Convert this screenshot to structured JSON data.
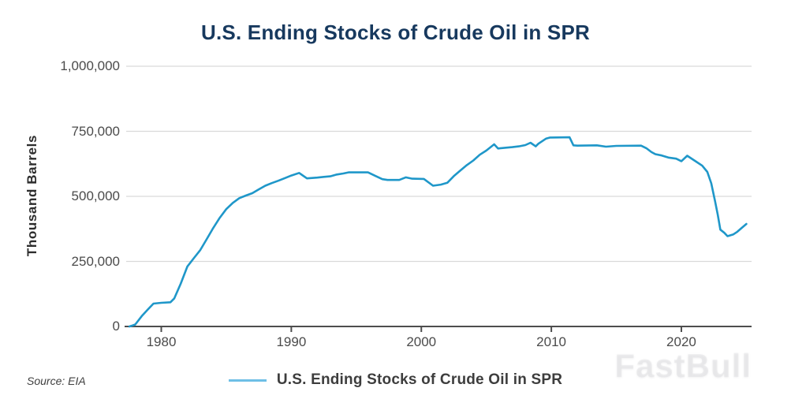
{
  "title": "U.S. Ending Stocks of Crude Oil in SPR",
  "y_axis_title": "Thousand Barrels",
  "source_label": "Source: EIA",
  "watermark": "FastBull",
  "legend": {
    "label": "U.S. Ending Stocks of Crude Oil in SPR",
    "swatch_color": "#6ebfe6"
  },
  "colors": {
    "title": "#17395e",
    "line": "#1f97c9",
    "grid": "#d9d9d9",
    "axis": "#4d4d4d",
    "tick_text": "#4b4b4b"
  },
  "chart_data": {
    "type": "line",
    "title": "U.S. Ending Stocks of Crude Oil in SPR",
    "xlabel": "",
    "ylabel": "Thousand Barrels",
    "xlim": [
      1977.3,
      2025.4
    ],
    "ylim": [
      0,
      1000000
    ],
    "grid": "horizontal-only",
    "legend_position": "bottom-center",
    "xticks": [
      {
        "value": 1980,
        "label": "1980"
      },
      {
        "value": 1990,
        "label": "1990"
      },
      {
        "value": 2000,
        "label": "2000"
      },
      {
        "value": 2010,
        "label": "2010"
      },
      {
        "value": 2020,
        "label": "2020"
      }
    ],
    "yticks": [
      {
        "value": 0,
        "label": "0"
      },
      {
        "value": 250000,
        "label": "250,000"
      },
      {
        "value": 500000,
        "label": "500,000"
      },
      {
        "value": 750000,
        "label": "750,000"
      },
      {
        "value": 1000000,
        "label": "1,000,000"
      }
    ],
    "series": [
      {
        "name": "U.S. Ending Stocks of Crude Oil in SPR",
        "color": "#1f97c9",
        "units": "thousand barrels",
        "points": [
          [
            1977.55,
            0
          ],
          [
            1977.8,
            4000
          ],
          [
            1978.0,
            7500
          ],
          [
            1978.5,
            40000
          ],
          [
            1979.0,
            67000
          ],
          [
            1979.4,
            88000
          ],
          [
            1980.0,
            91000
          ],
          [
            1980.7,
            93000
          ],
          [
            1981.0,
            108000
          ],
          [
            1981.5,
            165000
          ],
          [
            1982.0,
            230000
          ],
          [
            1982.5,
            262000
          ],
          [
            1983.0,
            294000
          ],
          [
            1983.5,
            336000
          ],
          [
            1984.0,
            379000
          ],
          [
            1984.5,
            418000
          ],
          [
            1985.0,
            451000
          ],
          [
            1985.5,
            475000
          ],
          [
            1986.0,
            493000
          ],
          [
            1986.5,
            503000
          ],
          [
            1987.0,
            512000
          ],
          [
            1987.5,
            527000
          ],
          [
            1988.0,
            541000
          ],
          [
            1988.5,
            551000
          ],
          [
            1989.0,
            560000
          ],
          [
            1989.5,
            570000
          ],
          [
            1990.0,
            580000
          ],
          [
            1990.6,
            590000
          ],
          [
            1991.2,
            569000
          ],
          [
            1992.0,
            572000
          ],
          [
            1992.5,
            575000
          ],
          [
            1993.0,
            577000
          ],
          [
            1993.5,
            584000
          ],
          [
            1994.0,
            588000
          ],
          [
            1994.4,
            592000
          ],
          [
            1995.9,
            592000
          ],
          [
            1996.5,
            578000
          ],
          [
            1997.0,
            566000
          ],
          [
            1997.4,
            563000
          ],
          [
            1998.3,
            563000
          ],
          [
            1998.8,
            573000
          ],
          [
            1999.3,
            568000
          ],
          [
            2000.2,
            567000
          ],
          [
            2000.9,
            541000
          ],
          [
            2001.5,
            545000
          ],
          [
            2002.0,
            552000
          ],
          [
            2002.5,
            578000
          ],
          [
            2003.0,
            599000
          ],
          [
            2003.5,
            620000
          ],
          [
            2004.0,
            638000
          ],
          [
            2004.5,
            660000
          ],
          [
            2005.0,
            676000
          ],
          [
            2005.6,
            700000
          ],
          [
            2005.9,
            684000
          ],
          [
            2006.5,
            687000
          ],
          [
            2007.0,
            689000
          ],
          [
            2007.5,
            692000
          ],
          [
            2008.0,
            697000
          ],
          [
            2008.4,
            706000
          ],
          [
            2008.8,
            692000
          ],
          [
            2009.0,
            702000
          ],
          [
            2009.6,
            722000
          ],
          [
            2009.9,
            726000
          ],
          [
            2011.4,
            727000
          ],
          [
            2011.7,
            696000
          ],
          [
            2012.0,
            695000
          ],
          [
            2013.5,
            696000
          ],
          [
            2014.2,
            691000
          ],
          [
            2015.0,
            694000
          ],
          [
            2016.9,
            695000
          ],
          [
            2017.3,
            685000
          ],
          [
            2017.7,
            670000
          ],
          [
            2018.0,
            662000
          ],
          [
            2018.5,
            657000
          ],
          [
            2019.0,
            649000
          ],
          [
            2019.6,
            645000
          ],
          [
            2020.0,
            635000
          ],
          [
            2020.45,
            656000
          ],
          [
            2021.0,
            638000
          ],
          [
            2021.6,
            618000
          ],
          [
            2022.0,
            594000
          ],
          [
            2022.3,
            550000
          ],
          [
            2022.6,
            480000
          ],
          [
            2022.8,
            430000
          ],
          [
            2023.0,
            372000
          ],
          [
            2023.3,
            360000
          ],
          [
            2023.55,
            347000
          ],
          [
            2023.8,
            351000
          ],
          [
            2024.0,
            354000
          ],
          [
            2024.3,
            364000
          ],
          [
            2024.6,
            377000
          ],
          [
            2025.0,
            394000
          ]
        ]
      }
    ]
  }
}
